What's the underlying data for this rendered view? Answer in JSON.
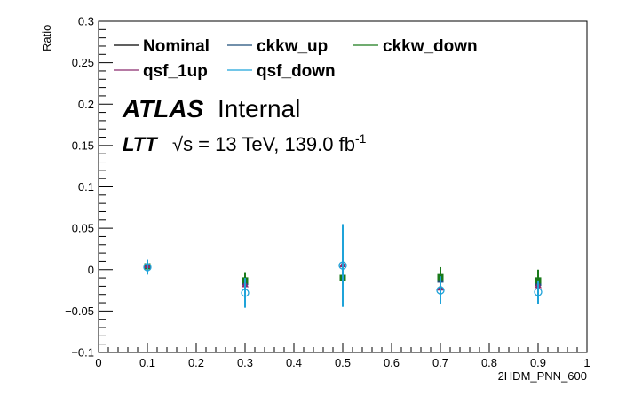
{
  "chart_data": {
    "type": "scatter",
    "xlabel": "2HDM_PNN_600",
    "ylabel": "Ratio",
    "xlim": [
      0,
      1
    ],
    "ylim": [
      -0.1,
      0.3
    ],
    "x_ticks": [
      "0",
      "0.1",
      "0.2",
      "0.3",
      "0.4",
      "0.5",
      "0.6",
      "0.7",
      "0.8",
      "0.9",
      "1"
    ],
    "y_ticks": [
      "−0.1",
      "−0.05",
      "0",
      "0.05",
      "0.1",
      "0.15",
      "0.2",
      "0.25",
      "0.3"
    ],
    "x": [
      0.1,
      0.3,
      0.5,
      0.7,
      0.9
    ],
    "series": [
      {
        "name": "Nominal",
        "color": "#000000",
        "marker": "none",
        "values": [
          0.003,
          -0.015,
          -0.01,
          -0.012,
          -0.016
        ],
        "errors": [
          0.002,
          0.002,
          0.002,
          0.002,
          0.002
        ]
      },
      {
        "name": "ckkw_up",
        "color": "#1f4e79",
        "marker": "filled-square",
        "values": [
          0.004,
          -0.015,
          -0.01,
          -0.012,
          -0.016
        ],
        "errors": [
          0.003,
          0.004,
          0.005,
          0.004,
          0.004
        ]
      },
      {
        "name": "ckkw_down",
        "color": "#1a7a1a",
        "marker": "filled-square",
        "values": [
          0.004,
          -0.013,
          -0.01,
          -0.009,
          -0.013
        ],
        "errors": [
          0.004,
          0.01,
          0.006,
          0.012,
          0.013
        ]
      },
      {
        "name": "qsf_1up",
        "color": "#8b2a6e",
        "marker": "filled-triangle",
        "values": [
          0.005,
          -0.018,
          0.006,
          -0.022,
          -0.019
        ],
        "errors": [
          0.004,
          0.005,
          0.005,
          0.005,
          0.005
        ]
      },
      {
        "name": "qsf_down",
        "color": "#1fa3d9",
        "marker": "open-circle",
        "values": [
          0.003,
          -0.028,
          0.005,
          -0.025,
          -0.027
        ],
        "errors": [
          0.009,
          0.018,
          0.05,
          0.017,
          0.014
        ]
      }
    ],
    "legend_placement": "top-left",
    "annotations": {
      "atlas": "ATLAS",
      "status": "Internal",
      "region": "LTT",
      "sqrt_s": "√s = 13 TeV, 139.0 fb",
      "lumi_exp": "-1"
    }
  }
}
